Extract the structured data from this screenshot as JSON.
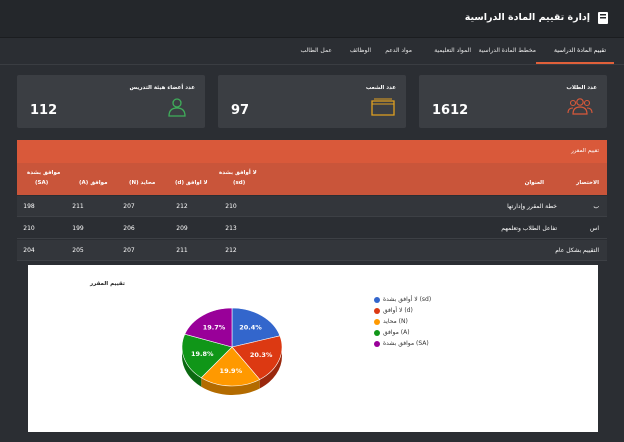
{
  "header": {
    "title": "إدارة تقييم المادة الدراسية",
    "logo": "book-icon"
  },
  "tabs": [
    {
      "label": "تقييم المادة الدراسية",
      "active": true
    },
    {
      "label": "مخطط المادة الدراسية"
    },
    {
      "label": "المواد التعليمية"
    },
    {
      "label": "مواد الدعم"
    },
    {
      "label": "الوظائف"
    },
    {
      "label": "عمل الطالب"
    }
  ],
  "stats": [
    {
      "label": "عدد الطلاب",
      "value": "1612",
      "icon": "users-icon",
      "color": "#d9593a"
    },
    {
      "label": "عدد الشعب",
      "value": "97",
      "icon": "folder-icon",
      "color": "#e0a020"
    },
    {
      "label": "عدد أعضاء هيئة التدريس",
      "value": "112",
      "icon": "user-icon",
      "color": "#3fae5a"
    }
  ],
  "panel": {
    "title": "تقييم المقرر",
    "columns": {
      "abbr": "الاختصار",
      "title": "العنوان",
      "sd": "لا أوافق بشدة",
      "sd_code": "(sd)",
      "d": "لا اوافق (d)",
      "n": "محايد (N)",
      "a": "موافق (A)",
      "sa": "موافق بشدة",
      "sa_code": "(SA)"
    },
    "rows": [
      {
        "abbr": "ب",
        "title": "خطة المقرر وإدارتها",
        "sd": "210",
        "d": "212",
        "n": "207",
        "a": "211",
        "sa": "198"
      },
      {
        "abbr": "اس",
        "title": "تفاعل الطلاب وتعلمهم",
        "sd": "213",
        "d": "209",
        "n": "206",
        "a": "199",
        "sa": "210"
      },
      {
        "abbr": "",
        "title": "التقييم بشكل عام",
        "sd": "212",
        "d": "211",
        "n": "207",
        "a": "205",
        "sa": "204"
      }
    ]
  },
  "chart_data": {
    "type": "pie",
    "title": "تقييم المقرر",
    "slices": [
      {
        "label": "لا أوافق بشدة (sd)",
        "value": 20.4,
        "display": "20.4%",
        "color": "#3366cc"
      },
      {
        "label": "لا أوافق (d)",
        "value": 20.3,
        "display": "20.3%",
        "color": "#dc3912"
      },
      {
        "label": "محايد (N)",
        "value": 19.9,
        "display": "19.9%",
        "color": "#ff9900"
      },
      {
        "label": "موافق (A)",
        "value": 19.8,
        "display": "19.8%",
        "color": "#109618"
      },
      {
        "label": "موافق بشدة (SA)",
        "value": 19.7,
        "display": "19.7%",
        "color": "#990099"
      }
    ],
    "legend": "right"
  }
}
